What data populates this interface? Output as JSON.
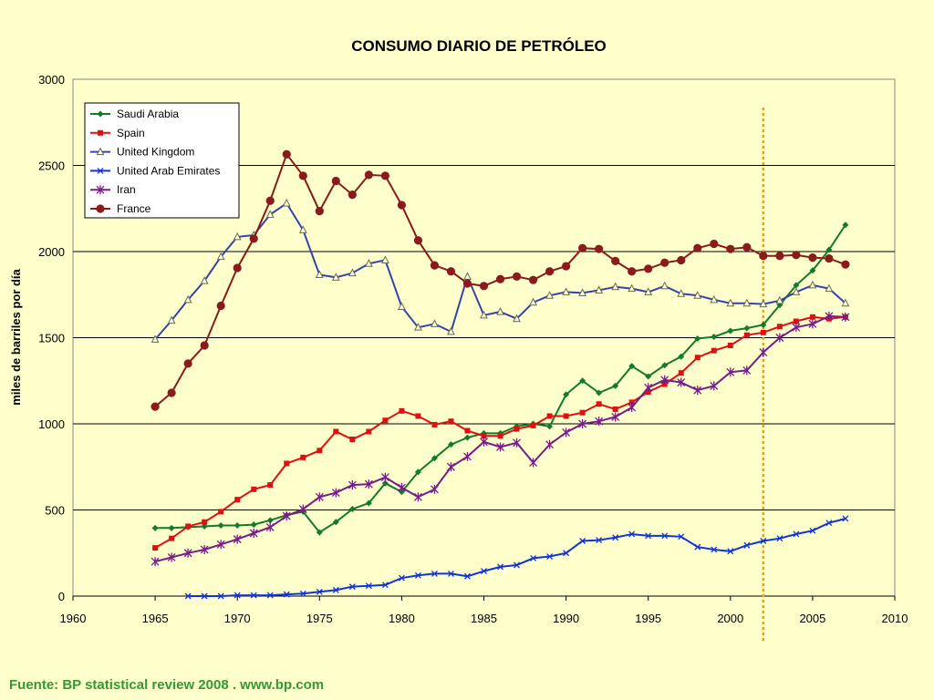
{
  "chart_data": {
    "type": "line",
    "title": "CONSUMO DIARIO DE PETRÓLEO",
    "xlabel": "",
    "ylabel": "miles de barriles por día",
    "xlim": [
      1960,
      2010
    ],
    "ylim": [
      0,
      3000
    ],
    "x_ticks": [
      1960,
      1965,
      1970,
      1975,
      1980,
      1985,
      1990,
      1995,
      2000,
      2005,
      2010
    ],
    "y_ticks": [
      0,
      500,
      1000,
      1500,
      2000,
      2500,
      3000
    ],
    "grid": "horizontal",
    "legend_position": "top-left",
    "reference_line": {
      "x": 2002,
      "color": "#E8A020",
      "style": "dotted"
    },
    "series": [
      {
        "name": "Saudi Arabia",
        "color": "#127A2A",
        "marker": "diamond",
        "x": [
          1965,
          1966,
          1967,
          1968,
          1969,
          1970,
          1971,
          1972,
          1973,
          1974,
          1975,
          1976,
          1977,
          1978,
          1979,
          1980,
          1981,
          1982,
          1983,
          1984,
          1985,
          1986,
          1987,
          1988,
          1989,
          1990,
          1991,
          1992,
          1993,
          1994,
          1995,
          1996,
          1997,
          1998,
          1999,
          2000,
          2001,
          2002,
          2003,
          2004,
          2005,
          2006,
          2007
        ],
        "y": [
          395,
          395,
          400,
          405,
          410,
          410,
          415,
          440,
          470,
          490,
          370,
          430,
          505,
          540,
          655,
          605,
          720,
          800,
          880,
          920,
          945,
          945,
          985,
          1000,
          985,
          1170,
          1250,
          1180,
          1220,
          1335,
          1275,
          1340,
          1390,
          1495,
          1505,
          1540,
          1555,
          1575,
          1690,
          1805,
          1890,
          2010,
          2155
        ]
      },
      {
        "name": "Spain",
        "color": "#DD1111",
        "marker": "square",
        "x": [
          1965,
          1966,
          1967,
          1968,
          1969,
          1970,
          1971,
          1972,
          1973,
          1974,
          1975,
          1976,
          1977,
          1978,
          1979,
          1980,
          1981,
          1982,
          1983,
          1984,
          1985,
          1986,
          1987,
          1988,
          1989,
          1990,
          1991,
          1992,
          1993,
          1994,
          1995,
          1996,
          1997,
          1998,
          1999,
          2000,
          2001,
          2002,
          2003,
          2004,
          2005,
          2006,
          2007
        ],
        "y": [
          280,
          335,
          405,
          430,
          490,
          560,
          620,
          645,
          770,
          805,
          845,
          955,
          910,
          955,
          1020,
          1075,
          1045,
          995,
          1015,
          960,
          930,
          930,
          970,
          990,
          1045,
          1045,
          1065,
          1115,
          1085,
          1125,
          1185,
          1230,
          1295,
          1385,
          1425,
          1455,
          1515,
          1530,
          1565,
          1595,
          1620,
          1610,
          1620
        ]
      },
      {
        "name": "United Kingdom",
        "color": "#3344AA",
        "marker": "triangle",
        "x": [
          1965,
          1966,
          1967,
          1968,
          1969,
          1970,
          1971,
          1972,
          1973,
          1974,
          1975,
          1976,
          1977,
          1978,
          1979,
          1980,
          1981,
          1982,
          1983,
          1984,
          1985,
          1986,
          1987,
          1988,
          1989,
          1990,
          1991,
          1992,
          1993,
          1994,
          1995,
          1996,
          1997,
          1998,
          1999,
          2000,
          2001,
          2002,
          2003,
          2004,
          2005,
          2006,
          2007
        ],
        "y": [
          1490,
          1600,
          1720,
          1830,
          1970,
          2085,
          2095,
          2215,
          2280,
          2125,
          1865,
          1850,
          1875,
          1930,
          1950,
          1680,
          1560,
          1580,
          1535,
          1855,
          1630,
          1650,
          1610,
          1705,
          1745,
          1765,
          1760,
          1775,
          1795,
          1785,
          1765,
          1800,
          1755,
          1745,
          1720,
          1700,
          1700,
          1695,
          1715,
          1765,
          1805,
          1785,
          1700
        ]
      },
      {
        "name": "United Arab Emirates",
        "color": "#1133DD",
        "marker": "x",
        "x": [
          1967,
          1968,
          1969,
          1970,
          1971,
          1972,
          1973,
          1974,
          1975,
          1976,
          1977,
          1978,
          1979,
          1980,
          1981,
          1982,
          1983,
          1984,
          1985,
          1986,
          1987,
          1988,
          1989,
          1990,
          1991,
          1992,
          1993,
          1994,
          1995,
          1996,
          1997,
          1998,
          1999,
          2000,
          2001,
          2002,
          2003,
          2004,
          2005,
          2006,
          2007
        ],
        "y": [
          0,
          0,
          0,
          5,
          5,
          5,
          10,
          15,
          25,
          35,
          55,
          60,
          65,
          105,
          120,
          130,
          130,
          115,
          145,
          170,
          180,
          220,
          230,
          250,
          320,
          325,
          340,
          360,
          350,
          350,
          345,
          285,
          270,
          260,
          295,
          320,
          335,
          360,
          380,
          425,
          450
        ]
      },
      {
        "name": "Iran",
        "color": "#771C88",
        "marker": "star",
        "x": [
          1965,
          1966,
          1967,
          1968,
          1969,
          1970,
          1971,
          1972,
          1973,
          1974,
          1975,
          1976,
          1977,
          1978,
          1979,
          1980,
          1981,
          1982,
          1983,
          1984,
          1985,
          1986,
          1987,
          1988,
          1989,
          1990,
          1991,
          1992,
          1993,
          1994,
          1995,
          1996,
          1997,
          1998,
          1999,
          2000,
          2001,
          2002,
          2003,
          2004,
          2005,
          2006,
          2007
        ],
        "y": [
          200,
          225,
          250,
          270,
          300,
          330,
          365,
          400,
          465,
          505,
          575,
          600,
          645,
          650,
          690,
          630,
          575,
          620,
          750,
          810,
          895,
          865,
          890,
          775,
          880,
          950,
          1000,
          1015,
          1040,
          1095,
          1210,
          1255,
          1240,
          1195,
          1220,
          1300,
          1310,
          1415,
          1500,
          1560,
          1580,
          1625,
          1620
        ]
      },
      {
        "name": "France",
        "color": "#8B1A1A",
        "marker": "circle",
        "x": [
          1965,
          1966,
          1967,
          1968,
          1969,
          1970,
          1971,
          1972,
          1973,
          1974,
          1975,
          1976,
          1977,
          1978,
          1979,
          1980,
          1981,
          1982,
          1983,
          1984,
          1985,
          1986,
          1987,
          1988,
          1989,
          1990,
          1991,
          1992,
          1993,
          1994,
          1995,
          1996,
          1997,
          1998,
          1999,
          2000,
          2001,
          2002,
          2003,
          2004,
          2005,
          2006,
          2007
        ],
        "y": [
          1100,
          1180,
          1350,
          1455,
          1685,
          1905,
          2075,
          2295,
          2565,
          2440,
          2235,
          2410,
          2330,
          2445,
          2440,
          2270,
          2065,
          1920,
          1885,
          1815,
          1800,
          1840,
          1855,
          1835,
          1885,
          1915,
          2020,
          2015,
          1945,
          1885,
          1900,
          1935,
          1950,
          2020,
          2045,
          2015,
          2025,
          1975,
          1975,
          1980,
          1965,
          1960,
          1925
        ]
      }
    ]
  },
  "footer": {
    "source": "Fuente: BP statistical review 2008 . www.bp.com"
  }
}
